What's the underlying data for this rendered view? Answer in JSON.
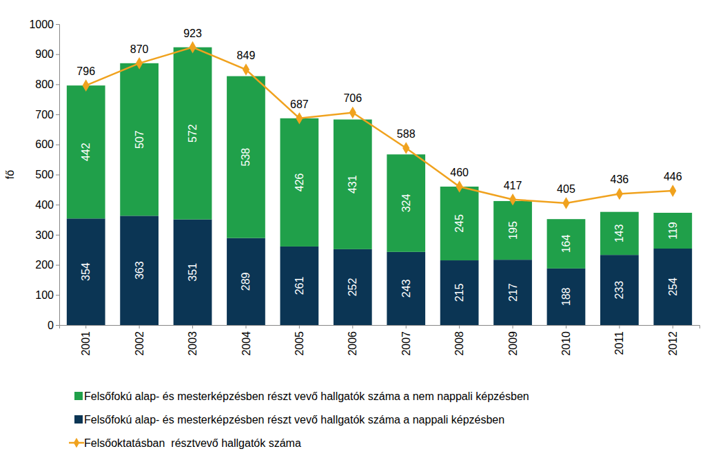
{
  "chart_data": {
    "type": "bar",
    "stacked": true,
    "data_labels": true,
    "grid": false,
    "legend": "bottom",
    "y_label": "fő",
    "categories": [
      "2001",
      "2002",
      "2003",
      "2004",
      "2005",
      "2006",
      "2007",
      "2008",
      "2009",
      "2010",
      "2011",
      "2012"
    ],
    "series": [
      {
        "name": "Felsőfokú alap- és mesterképzésben részt vevő hallgatók száma a nem nappali képzésben",
        "color": "#20a04a",
        "values": [
          442,
          507,
          572,
          538,
          426,
          431,
          324,
          245,
          195,
          164,
          143,
          119
        ]
      },
      {
        "name": "Felsőfokú alap- és mesterképzésben részt vevő hallgatók száma a nappali képzésben",
        "color": "#0b3554",
        "values": [
          354,
          363,
          351,
          289,
          261,
          252,
          243,
          215,
          217,
          188,
          233,
          254
        ]
      },
      {
        "name": "Felsőoktatásban  résztvevő hallgatók száma",
        "type": "line",
        "marker": "diamond",
        "color": "#f0a21e",
        "values": [
          796,
          870,
          923,
          849,
          687,
          706,
          588,
          460,
          417,
          405,
          436,
          446
        ]
      }
    ],
    "ylim": [
      0,
      1000
    ],
    "yticks": [
      0,
      100,
      200,
      300,
      400,
      500,
      600,
      700,
      800,
      900,
      1000
    ]
  }
}
